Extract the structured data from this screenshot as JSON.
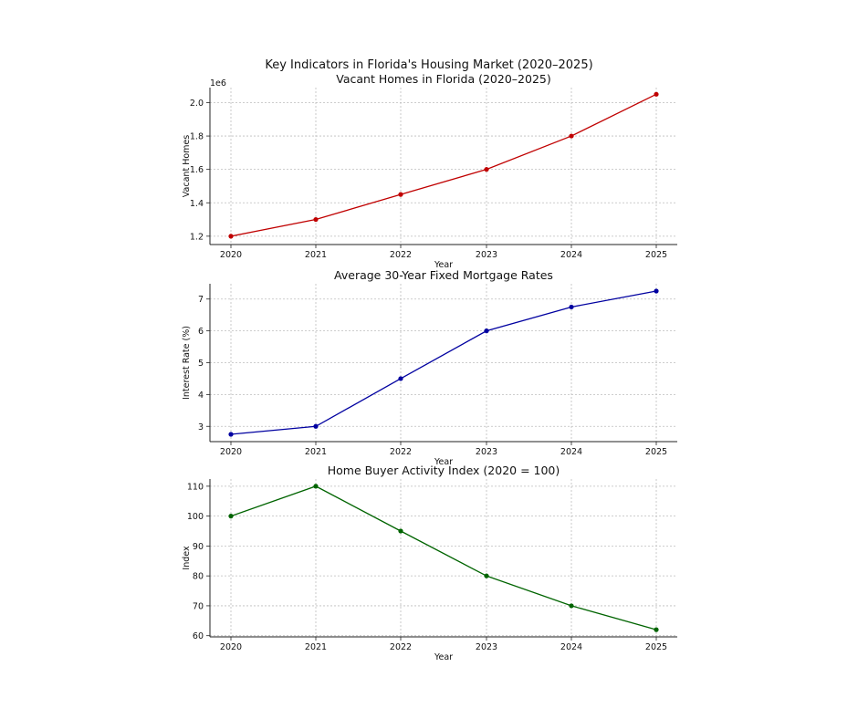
{
  "figure": {
    "suptitle": "Key Indicators in Florida's Housing Market (2020–2025)"
  },
  "chart_data": [
    {
      "type": "line",
      "title": "Vacant Homes in Florida (2020–2025)",
      "xlabel": "Year",
      "ylabel": "Vacant Homes",
      "offset_label": "1e6",
      "x": [
        "2020",
        "2021",
        "2022",
        "2023",
        "2024",
        "2025"
      ],
      "series": [
        {
          "values": [
            1.2,
            1.3,
            1.45,
            1.6,
            1.8,
            2.05
          ],
          "color": "#c00000",
          "marker": "circle"
        }
      ],
      "ylim": [
        1.15,
        2.09
      ],
      "yticks": [
        1.2,
        1.4,
        1.6,
        1.8,
        2.0
      ],
      "ytick_labels": [
        "1.2",
        "1.4",
        "1.6",
        "1.8",
        "2.0"
      ],
      "grid": true,
      "grid_style": "dotted"
    },
    {
      "type": "line",
      "title": "Average 30-Year Fixed Mortgage Rates",
      "xlabel": "Year",
      "ylabel": "Interest Rate (%)",
      "x": [
        "2020",
        "2021",
        "2022",
        "2023",
        "2024",
        "2025"
      ],
      "series": [
        {
          "values": [
            2.75,
            3.0,
            4.5,
            6.0,
            6.75,
            7.25
          ],
          "color": "#0000a0",
          "marker": "circle"
        }
      ],
      "ylim": [
        2.52,
        7.48
      ],
      "yticks": [
        3,
        4,
        5,
        6,
        7
      ],
      "ytick_labels": [
        "3",
        "4",
        "5",
        "6",
        "7"
      ],
      "grid": true,
      "grid_style": "dotted"
    },
    {
      "type": "line",
      "title": "Home Buyer Activity Index (2020 = 100)",
      "xlabel": "Year",
      "ylabel": "Index",
      "x": [
        "2020",
        "2021",
        "2022",
        "2023",
        "2024",
        "2025"
      ],
      "series": [
        {
          "values": [
            100,
            110,
            95,
            80,
            70,
            62
          ],
          "color": "#006400",
          "marker": "circle"
        }
      ],
      "ylim": [
        59.6,
        112.4
      ],
      "yticks": [
        60,
        70,
        80,
        90,
        100,
        110
      ],
      "ytick_labels": [
        "60",
        "70",
        "80",
        "90",
        "100",
        "110"
      ],
      "grid": true,
      "grid_style": "dotted"
    }
  ]
}
